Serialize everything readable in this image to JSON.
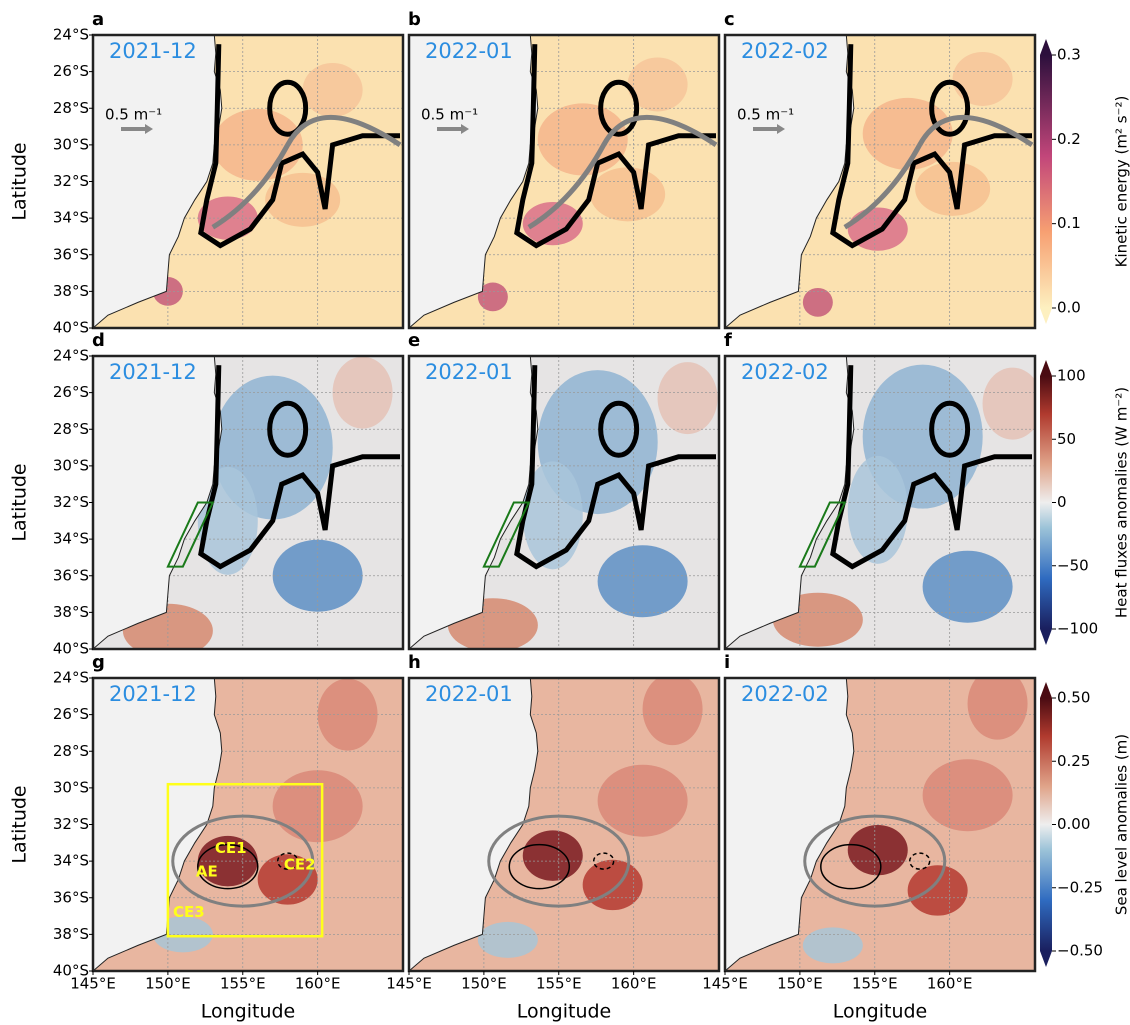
{
  "figure": {
    "lat_lim": [
      24,
      40
    ],
    "lon_lim": [
      145,
      165.7
    ],
    "lat_ticks": [
      {
        "value": 24,
        "label": "24°S"
      },
      {
        "value": 26,
        "label": "26°S"
      },
      {
        "value": 28,
        "label": "28°S"
      },
      {
        "value": 30,
        "label": "30°S"
      },
      {
        "value": 32,
        "label": "32°S"
      },
      {
        "value": 34,
        "label": "34°S"
      },
      {
        "value": 36,
        "label": "36°S"
      },
      {
        "value": 38,
        "label": "38°S"
      },
      {
        "value": 40,
        "label": "40°S"
      }
    ],
    "lon_ticks": [
      {
        "value": 145,
        "label": "145°E"
      },
      {
        "value": 150,
        "label": "150°E"
      },
      {
        "value": 155,
        "label": "155°E"
      },
      {
        "value": 160,
        "label": "160°E"
      }
    ],
    "rows": [
      {
        "ylabel": "Latitude",
        "colorbar": {
          "label": "Kinetic energy (m² s⁻²)",
          "lim": [
            0,
            0.3
          ],
          "ticks": [
            {
              "value": 0,
              "label": "0.0"
            },
            0.1,
            0.2,
            0.3
          ]
        }
      },
      {
        "ylabel": "Latitude",
        "colorbar": {
          "label": "Heat fluxes anomalies (W m⁻²)",
          "lim": [
            -100,
            100
          ],
          "ticks": [
            {
              "value": -100,
              "label": "−100"
            },
            {
              "value": -50,
              "label": "−50"
            },
            0,
            50,
            100
          ]
        }
      },
      {
        "ylabel": "Latitude",
        "colorbar": {
          "label": "Sea level anomalies (m)",
          "lim": [
            -0.5,
            0.5
          ],
          "ticks": [
            {
              "value": -0.5,
              "label": "−0.50"
            },
            {
              "value": -0.25,
              "label": "−0.25"
            },
            {
              "value": 0,
              "label": "0.00"
            },
            {
              "value": 0.25,
              "label": "0.25"
            },
            {
              "value": 0.5,
              "label": "0.50"
            }
          ]
        }
      }
    ],
    "columns": [
      {
        "xlabel": "Longitude"
      },
      {
        "xlabel": "Longitude"
      },
      {
        "xlabel": "Longitude"
      }
    ],
    "panels": [
      {
        "letter": "a",
        "date": "2021-12",
        "scale_label": "0.5 m⁻¹"
      },
      {
        "letter": "b",
        "date": "2022-01",
        "scale_label": "0.5 m⁻¹"
      },
      {
        "letter": "c",
        "date": "2022-02",
        "scale_label": "0.5 m⁻¹"
      },
      {
        "letter": "d",
        "date": "2021-12"
      },
      {
        "letter": "e",
        "date": "2022-01"
      },
      {
        "letter": "f",
        "date": "2022-02"
      },
      {
        "letter": "g",
        "date": "2021-12",
        "eddy_labels": [
          "CE1",
          "AE",
          "CE2",
          "CE3"
        ]
      },
      {
        "letter": "h",
        "date": "2022-01"
      },
      {
        "letter": "i",
        "date": "2022-02"
      }
    ]
  }
}
